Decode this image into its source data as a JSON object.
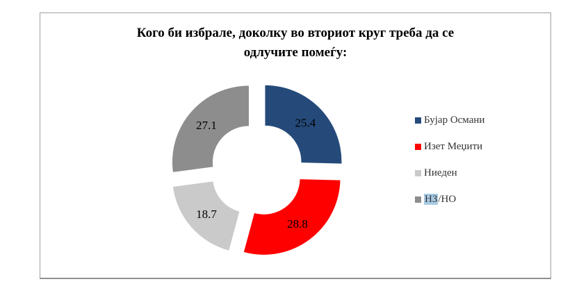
{
  "figure": {
    "title": "Кого би избрале, доколку во вториот круг треба да се\nодлучите помеѓу:"
  },
  "chart_data": {
    "type": "pie",
    "subtype": "exploded-donut",
    "title": "Кого би избрале, доколку во вториот круг треба да се одлучите помеѓу:",
    "categories": [
      "Бујар Османи",
      "Изет Меџити",
      "Ниеден",
      "НЗ/НО"
    ],
    "values": [
      25.4,
      28.8,
      18.7,
      27.1
    ],
    "data_labels": [
      "25.4",
      "28.8",
      "18.7",
      "27.1"
    ],
    "colors": [
      "#254A7A",
      "#FE0000",
      "#CBCACA",
      "#8D8D8D"
    ],
    "legend_position": "right",
    "start_angle_deg": 0,
    "clockwise": true,
    "hole_ratio": 0.47,
    "exploded": true
  },
  "legend": {
    "items": [
      {
        "label": "Бујар Османи",
        "color": "#254A7A"
      },
      {
        "label": "Изет Меџити",
        "color": "#FE0000"
      },
      {
        "label": "Ниеден",
        "color": "#CBCACA"
      },
      {
        "label": "НЗ/НО",
        "color": "#8D8D8D",
        "highlight_text": "НЗ",
        "rest_text": "/НО",
        "highlight_color": "#A9CCE6"
      }
    ]
  }
}
